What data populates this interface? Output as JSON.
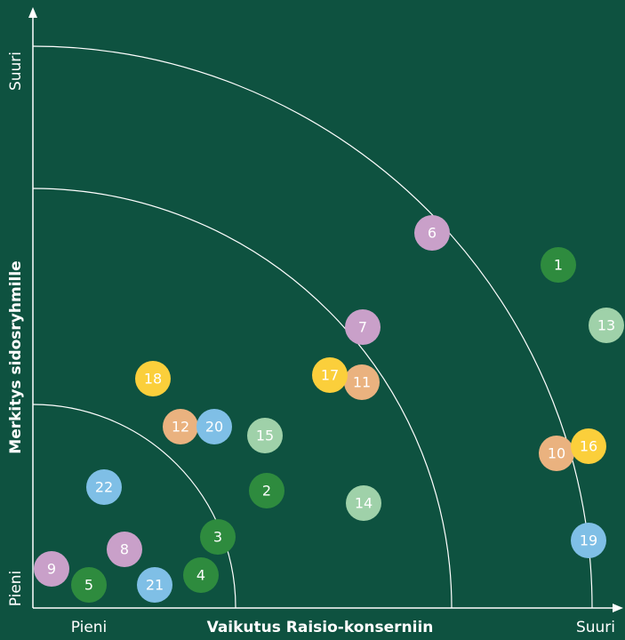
{
  "chart_data": {
    "type": "scatter",
    "y_label": "Merkitys sidosryhmille",
    "x_label": "Vaikutus Raisio-konserniin",
    "x_low_label": "Pieni",
    "x_high_label": "Suuri",
    "y_low_label": "Pieni",
    "y_high_label": "Suuri",
    "xlim": [
      0,
      666
    ],
    "ylim": [
      0,
      674
    ],
    "points": [
      {
        "label": "1",
        "color": "#2e8b3e",
        "x": 591,
        "y": 386
      },
      {
        "label": "2",
        "color": "#2e8b3e",
        "x": 263,
        "y": 132
      },
      {
        "label": "3",
        "color": "#2e8b3e",
        "x": 208,
        "y": 80
      },
      {
        "label": "4",
        "color": "#2e8b3e",
        "x": 189,
        "y": 37
      },
      {
        "label": "5",
        "color": "#2e8b3e",
        "x": 63,
        "y": 26
      },
      {
        "label": "6",
        "color": "#c9a0c9",
        "x": 449,
        "y": 422
      },
      {
        "label": "7",
        "color": "#c9a0c9",
        "x": 371,
        "y": 316
      },
      {
        "label": "8",
        "color": "#c9a0c9",
        "x": 103,
        "y": 66
      },
      {
        "label": "9",
        "color": "#c9a0c9",
        "x": 21,
        "y": 44
      },
      {
        "label": "10",
        "color": "#eab27f",
        "x": 589,
        "y": 174
      },
      {
        "label": "11",
        "color": "#eab27f",
        "x": 370,
        "y": 254
      },
      {
        "label": "12",
        "color": "#eab27f",
        "x": 166,
        "y": 204
      },
      {
        "label": "13",
        "color": "#9fd1a9",
        "x": 645,
        "y": 318
      },
      {
        "label": "14",
        "color": "#9fd1a9",
        "x": 372,
        "y": 118
      },
      {
        "label": "15",
        "color": "#9fd1a9",
        "x": 261,
        "y": 194
      },
      {
        "label": "16",
        "color": "#fbcf3b",
        "x": 625,
        "y": 182
      },
      {
        "label": "17",
        "color": "#fbcf3b",
        "x": 334,
        "y": 262
      },
      {
        "label": "18",
        "color": "#fbcf3b",
        "x": 135,
        "y": 258
      },
      {
        "label": "19",
        "color": "#7fbfe6",
        "x": 625,
        "y": 76
      },
      {
        "label": "20",
        "color": "#7fbfe6",
        "x": 204,
        "y": 204
      },
      {
        "label": "21",
        "color": "#7fbfe6",
        "x": 137,
        "y": 26
      },
      {
        "label": "22",
        "color": "#7fbfe6",
        "x": 80,
        "y": 136
      }
    ]
  }
}
